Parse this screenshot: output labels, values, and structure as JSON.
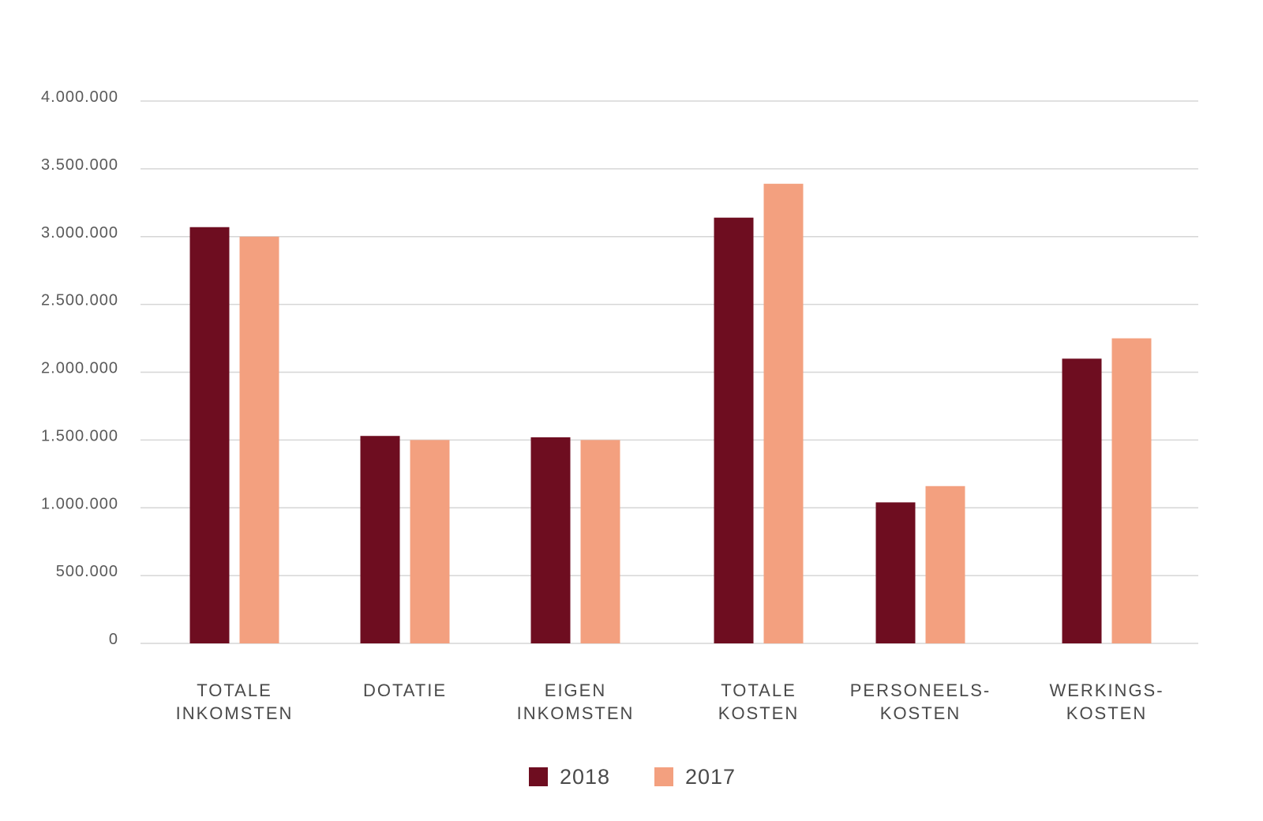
{
  "chart_data": {
    "type": "bar",
    "title": "",
    "xlabel": "",
    "ylabel": "",
    "ylim": [
      0,
      4000000
    ],
    "y_ticks": [
      0,
      500000,
      1000000,
      1500000,
      2000000,
      2500000,
      3000000,
      3500000,
      4000000
    ],
    "y_tick_labels": [
      "0",
      "500.000",
      "1.000.000",
      "1.500.000",
      "2.000.000",
      "2.500.000",
      "3.000.000",
      "3.500.000",
      "4.000.000"
    ],
    "categories": [
      [
        "TOTALE",
        "INKOMSTEN"
      ],
      [
        "DOTATIE"
      ],
      [
        "EIGEN",
        "INKOMSTEN"
      ],
      [
        "TOTALE",
        "KOSTEN"
      ],
      [
        "PERSONEELS-",
        "KOSTEN"
      ],
      [
        "WERKINGS-",
        "KOSTEN"
      ]
    ],
    "series": [
      {
        "name": "2018",
        "color": "#6e0d20",
        "values": [
          3070000,
          1530000,
          1520000,
          3140000,
          1040000,
          2100000
        ]
      },
      {
        "name": "2017",
        "color": "#f3a07f",
        "values": [
          3000000,
          1500000,
          1500000,
          3390000,
          1160000,
          2250000
        ]
      }
    ],
    "grid": true,
    "legend": "bottom-center"
  }
}
